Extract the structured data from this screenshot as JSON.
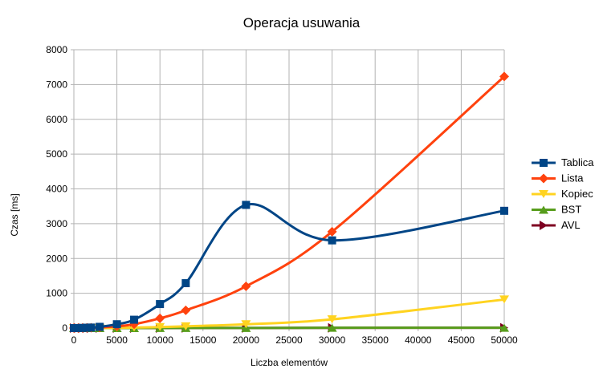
{
  "chart_data": {
    "type": "line",
    "title": "Operacja usuwania",
    "xlabel": "Liczba elementów",
    "ylabel": "Czas [ms]",
    "xlim": [
      0,
      50000
    ],
    "ylim": [
      0,
      8000
    ],
    "x_ticks": [
      0,
      5000,
      10000,
      15000,
      20000,
      25000,
      30000,
      35000,
      40000,
      45000,
      50000
    ],
    "y_ticks": [
      0,
      1000,
      2000,
      3000,
      4000,
      5000,
      6000,
      7000,
      8000
    ],
    "grid": true,
    "smooth": true,
    "legend_position": "right",
    "x": [
      0,
      500,
      1000,
      1500,
      2000,
      3000,
      5000,
      7000,
      10000,
      13000,
      20000,
      30000,
      50000
    ],
    "series": [
      {
        "name": "Tablica",
        "color": "#004586",
        "marker": "square",
        "values": [
          0,
          2,
          5,
          10,
          15,
          35,
          110,
          240,
          690,
          1290,
          3540,
          2520,
          3370
        ]
      },
      {
        "name": "Lista",
        "color": "#ff420e",
        "marker": "diamond",
        "values": [
          0,
          1,
          3,
          5,
          8,
          18,
          50,
          110,
          280,
          510,
          1200,
          2770,
          7230
        ]
      },
      {
        "name": "Kopiec",
        "color": "#ffd320",
        "marker": "triangle-down",
        "values": [
          0,
          0,
          1,
          1,
          2,
          3,
          8,
          15,
          30,
          50,
          110,
          250,
          820
        ]
      },
      {
        "name": "BST",
        "color": "#579d1c",
        "marker": "triangle-up",
        "values": [
          0,
          0,
          0,
          0,
          0,
          0,
          1,
          1,
          2,
          2,
          3,
          8,
          10
        ]
      },
      {
        "name": "AVL",
        "color": "#7e0021",
        "marker": "triangle-right",
        "values": [
          0,
          0,
          0,
          0,
          0,
          0,
          1,
          1,
          1,
          2,
          3,
          6,
          10
        ]
      }
    ]
  }
}
